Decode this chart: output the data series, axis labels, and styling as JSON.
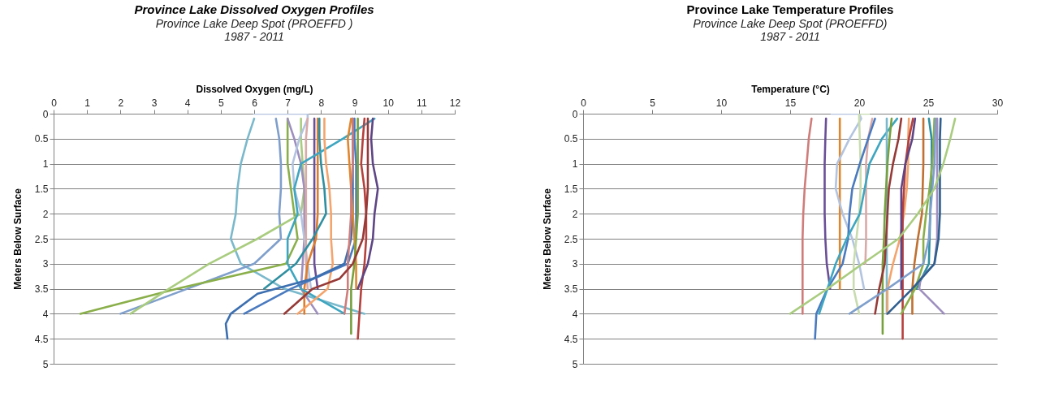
{
  "chart_data": [
    {
      "type": "line",
      "title": "Province Lake Dissolved Oxygen Profiles",
      "subtitle": "Province Lake Deep Spot (PROEFFD )\n1987 - 2011",
      "xlabel": "Dissolved Oxygen (mg/L)",
      "ylabel": "Meters Below Surface",
      "xlim": [
        0,
        12
      ],
      "xticks": [
        0,
        1,
        2,
        3,
        4,
        5,
        6,
        7,
        8,
        9,
        10,
        11,
        12
      ],
      "ylim": [
        5,
        0
      ],
      "yticks": [
        0,
        0.5,
        1,
        1.5,
        2,
        2.5,
        3,
        3.5,
        4,
        4.5,
        5
      ],
      "grid": "y",
      "legend": false,
      "marker": "none",
      "line_style": "solid",
      "series": [
        {
          "color": "#7ab9cc",
          "x": [
            6.0,
            5.8,
            5.6,
            5.5,
            5.45,
            5.3,
            5.6,
            6.9,
            9.3
          ],
          "values": [
            0.1,
            0.5,
            1,
            1.5,
            2,
            2.5,
            3,
            3.5,
            4
          ]
        },
        {
          "color": "#7f9fcc",
          "x": [
            6.65,
            6.75,
            6.8,
            6.8,
            6.75,
            6.8,
            6.0,
            4.0,
            2.0
          ],
          "values": [
            0.1,
            0.5,
            1,
            1.5,
            2,
            2.5,
            3,
            3.5,
            4
          ]
        },
        {
          "color": "#8aaf4a",
          "x": [
            7.0,
            7.0,
            7.0,
            7.1,
            7.2,
            7.3,
            6.95,
            3.7,
            0.8
          ],
          "values": [
            0.1,
            0.5,
            1,
            1.5,
            2,
            2.5,
            3,
            3.5,
            4
          ]
        },
        {
          "color": "#a9cc7f",
          "x": [
            7.4,
            7.4,
            7.45,
            7.5,
            7.4,
            6.1,
            4.65,
            3.45,
            2.3
          ],
          "values": [
            0.1,
            0.5,
            1,
            1.5,
            2,
            2.5,
            3,
            3.5,
            4
          ]
        },
        {
          "color": "#9e8fbf",
          "x": [
            7.0,
            7.2,
            7.4,
            7.5,
            7.5,
            7.5,
            7.45,
            7.4,
            7.9
          ],
          "values": [
            0.1,
            0.5,
            1,
            1.5,
            2,
            2.5,
            3,
            3.5,
            4
          ]
        },
        {
          "color": "#b3c4e0",
          "x": [
            6.0,
            7.6,
            7.6,
            7.35,
            7.15,
            7.2,
            7.4,
            7.5,
            7.6,
            7.7
          ],
          "values": [
            0,
            0,
            0.1,
            0.5,
            1,
            1.5,
            2,
            2.5,
            3,
            3.5
          ]
        },
        {
          "color": "#d9aaa8",
          "x": [
            7.6,
            7.55,
            7.55,
            7.55,
            7.55,
            7.55,
            7.55,
            7.6
          ],
          "values": [
            0.1,
            0.5,
            1,
            1.5,
            2,
            2.5,
            3,
            3.5
          ]
        },
        {
          "color": "#6b4f97",
          "x": [
            7.8,
            7.8,
            7.8,
            7.8,
            7.8,
            7.8,
            7.8,
            7.9
          ],
          "values": [
            0.1,
            0.5,
            1,
            1.5,
            2,
            2.5,
            3,
            3.5
          ]
        },
        {
          "color": "#dd7e2e",
          "x": [
            7.9,
            7.9,
            7.9,
            7.9,
            7.9,
            7.85,
            7.6,
            7.5,
            7.5
          ],
          "values": [
            0.1,
            0.5,
            1,
            1.5,
            2,
            2.5,
            3,
            3.5,
            4
          ]
        },
        {
          "color": "#2f8fa0",
          "x": [
            7.95,
            7.95,
            8.0,
            8.1,
            8.15,
            7.75,
            7.25,
            6.3
          ],
          "values": [
            0.1,
            0.5,
            1,
            1.5,
            2,
            2.5,
            3,
            3.5
          ]
        },
        {
          "color": "#3ea6c0",
          "x": [
            9.6,
            8.65,
            7.4,
            7.2,
            7.3,
            7.0,
            7.0,
            7.4,
            8.7
          ],
          "values": [
            0.1,
            0.5,
            1,
            1.5,
            2,
            2.5,
            3,
            3.5,
            4
          ]
        },
        {
          "color": "#f4a46c",
          "x": [
            8.1,
            8.1,
            8.15,
            8.25,
            8.3,
            8.3,
            8.35,
            8.2,
            7.3
          ],
          "values": [
            0.1,
            0.5,
            1,
            1.5,
            2,
            2.5,
            3,
            3.5,
            4
          ]
        },
        {
          "color": "#4a7abf",
          "x": [
            9.0,
            9.0,
            9.05,
            9.05,
            9.05,
            9.05,
            8.8,
            7.1,
            5.7
          ],
          "values": [
            0.1,
            0.5,
            1,
            1.5,
            2,
            2.5,
            3,
            3.5,
            4
          ]
        },
        {
          "color": "#3c6fb0",
          "x": [
            8.95,
            8.95,
            8.95,
            8.95,
            8.95,
            8.9,
            8.7,
            7.75,
            6.1,
            5.3,
            5.15,
            5.2
          ],
          "values": [
            0.1,
            0.5,
            1,
            1.5,
            2,
            2.5,
            3,
            3.3,
            3.6,
            4,
            4.2,
            4.5
          ]
        },
        {
          "color": "#e0872e",
          "x": [
            8.9,
            8.8,
            8.85,
            8.9,
            8.95,
            9.0,
            9.05,
            9.05
          ],
          "values": [
            0.1,
            0.5,
            1,
            1.5,
            2,
            2.5,
            3,
            3.5
          ]
        },
        {
          "color": "#cf7d7b",
          "x": [
            8.95,
            8.95,
            8.95,
            8.9,
            8.9,
            8.85,
            8.8,
            8.8,
            8.7
          ],
          "values": [
            0.1,
            0.5,
            1,
            1.5,
            2,
            2.5,
            3,
            3.5,
            4
          ]
        },
        {
          "color": "#77a03e",
          "x": [
            9.1,
            9.1,
            9.1,
            9.1,
            9.1,
            9.05,
            9.0,
            8.9,
            8.9,
            8.9
          ],
          "values": [
            0.1,
            0.5,
            1,
            1.5,
            2,
            2.5,
            3,
            3.5,
            4,
            4.4
          ]
        },
        {
          "color": "#b5403c",
          "x": [
            9.3,
            9.25,
            9.2,
            9.3,
            9.35,
            9.35,
            9.3,
            9.2,
            9.15,
            9.1
          ],
          "values": [
            0.1,
            0.5,
            1,
            1.5,
            2,
            2.5,
            3,
            3.5,
            4,
            4.5
          ]
        },
        {
          "color": "#963a37",
          "x": [
            9.4,
            9.4,
            9.4,
            9.4,
            9.35,
            9.25,
            8.95,
            8.55,
            7.75,
            6.9
          ],
          "values": [
            0.1,
            0.5,
            1,
            1.5,
            2,
            2.5,
            3,
            3.3,
            3.5,
            4
          ]
        },
        {
          "color": "#5e4585",
          "x": [
            9.55,
            9.5,
            9.55,
            9.7,
            9.6,
            9.55,
            9.4,
            9.1
          ],
          "values": [
            0.1,
            0.5,
            1,
            1.5,
            2,
            2.5,
            3,
            3.5
          ]
        }
      ]
    },
    {
      "type": "line",
      "title": "Province Lake Temperature Profiles",
      "subtitle": "Province Lake Deep Spot (PROEFFD)\n1987 - 2011",
      "xlabel": "Temperature (°C)",
      "ylabel": "Meters Below Surface",
      "xlim": [
        0,
        30
      ],
      "xticks": [
        0,
        5,
        10,
        15,
        20,
        25,
        30
      ],
      "ylim": [
        5,
        0
      ],
      "yticks": [
        0,
        0.5,
        1,
        1.5,
        2,
        2.5,
        3,
        3.5,
        4,
        4.5,
        5
      ],
      "grid": "y",
      "legend": false,
      "marker": "none",
      "line_style": "solid",
      "series": [
        {
          "color": "#cf7d7b",
          "x": [
            16.55,
            16.35,
            16.2,
            16.05,
            15.95,
            15.9,
            15.9,
            15.9,
            15.9
          ],
          "values": [
            0.1,
            0.5,
            1,
            1.5,
            2,
            2.5,
            3,
            3.5,
            4
          ]
        },
        {
          "color": "#6b4f97",
          "x": [
            17.6,
            17.55,
            17.5,
            17.5,
            17.5,
            17.55,
            17.65,
            17.9
          ],
          "values": [
            0.1,
            0.5,
            1,
            1.5,
            2,
            2.5,
            3,
            3.5
          ]
        },
        {
          "color": "#e0872e",
          "x": [
            18.6,
            18.6,
            18.6,
            18.6,
            18.6,
            18.6,
            18.6,
            18.6
          ],
          "values": [
            0.1,
            0.5,
            1,
            1.5,
            2,
            2.5,
            3,
            3.5
          ]
        },
        {
          "color": "#b3c4e0",
          "x": [
            18.0,
            20.0,
            20.15,
            19.3,
            18.4,
            18.3,
            18.8,
            19.5,
            20.0,
            20.35
          ],
          "values": [
            0,
            0,
            0.1,
            0.5,
            1,
            1.5,
            2,
            2.5,
            3,
            3.5
          ]
        },
        {
          "color": "#c8dcb0",
          "x": [
            20.7,
            20.0,
            20.0,
            20.1,
            20.1,
            20.0,
            19.8,
            19.6,
            19.6,
            20.0
          ],
          "values": [
            0,
            0,
            0.1,
            1,
            1.5,
            2,
            2.5,
            3,
            3.5,
            4
          ]
        },
        {
          "color": "#d9aaa8",
          "x": [
            20.95,
            20.65,
            20.5,
            20.5,
            20.5,
            20.5,
            20.45
          ],
          "values": [
            0.1,
            0.5,
            1,
            1.5,
            2,
            2.5,
            3
          ]
        },
        {
          "color": "#4a7abf",
          "x": [
            21.15,
            20.65,
            20.05,
            19.5,
            19.3,
            19.2,
            18.8,
            17.7,
            16.9,
            16.8
          ],
          "values": [
            0.1,
            0.5,
            1,
            1.5,
            2,
            2.5,
            3,
            3.5,
            4,
            4.5
          ]
        },
        {
          "color": "#3ea6c0",
          "x": [
            22.75,
            21.65,
            20.75,
            20.4,
            20.05,
            19.1,
            18.3,
            17.7,
            17.1
          ],
          "values": [
            0.1,
            0.5,
            1,
            1.5,
            2,
            2.5,
            3,
            3.5,
            4
          ]
        },
        {
          "color": "#7ab9cc",
          "x": [
            22.0,
            22.0,
            22.0,
            22.0,
            22.0,
            22.0,
            22.0,
            22.0,
            22.0
          ],
          "values": [
            0.1,
            0.5,
            1,
            1.5,
            2,
            2.5,
            3,
            3.5,
            4
          ]
        },
        {
          "color": "#77a03e",
          "x": [
            22.35,
            22.2,
            22.05,
            21.95,
            21.85,
            21.8,
            21.7,
            21.7,
            21.7,
            21.7
          ],
          "values": [
            0.1,
            0.5,
            1,
            1.5,
            2,
            2.5,
            3,
            3.5,
            4,
            4.4
          ]
        },
        {
          "color": "#963a37",
          "x": [
            23.05,
            22.85,
            22.45,
            22.15,
            22.05,
            21.95,
            21.85,
            21.45,
            21.15
          ],
          "values": [
            0.1,
            0.5,
            1,
            1.5,
            2,
            2.5,
            3,
            3.5,
            4
          ]
        },
        {
          "color": "#f4a46c",
          "x": [
            23.6,
            23.55,
            23.55,
            23.45,
            23.25,
            22.95,
            22.45,
            22.05,
            22.05
          ],
          "values": [
            0.1,
            0.5,
            1,
            1.5,
            2,
            2.5,
            3,
            3.5,
            4
          ]
        },
        {
          "color": "#b5403c",
          "x": [
            23.9,
            23.6,
            23.35,
            23.25,
            23.15,
            23.15,
            23.15,
            23.15,
            23.15,
            23.15
          ],
          "values": [
            0.1,
            0.5,
            1,
            1.5,
            2,
            2.5,
            3,
            3.5,
            4,
            4.5
          ]
        },
        {
          "color": "#5e4585",
          "x": [
            24.05,
            23.85,
            23.35,
            23.05,
            23.05,
            23.05,
            23.05,
            23.05
          ],
          "values": [
            0.1,
            0.5,
            1,
            1.5,
            2,
            2.5,
            3,
            3.5
          ]
        },
        {
          "color": "#c07030",
          "x": [
            24.65,
            24.65,
            24.65,
            24.6,
            24.55,
            24.25,
            24.0,
            23.85,
            23.85
          ],
          "values": [
            0.1,
            0.5,
            1,
            1.5,
            2,
            2.5,
            3,
            3.5,
            4
          ]
        },
        {
          "color": "#2f8fa0",
          "x": [
            25.05,
            25.25,
            25.25,
            25.2,
            25.15,
            25.1,
            25.05,
            24.15
          ],
          "values": [
            0.1,
            0.5,
            1,
            1.5,
            2,
            2.5,
            3,
            3.5
          ]
        },
        {
          "color": "#8aaf4a",
          "x": [
            25.45,
            25.4,
            25.3,
            25.1,
            24.85,
            24.65,
            24.65,
            24.05,
            23.05
          ],
          "values": [
            0.1,
            0.5,
            1,
            1.5,
            2,
            2.5,
            3,
            3.5,
            4
          ]
        },
        {
          "color": "#7f9fcc",
          "x": [
            25.55,
            25.5,
            25.45,
            25.3,
            25.15,
            25.05,
            24.65,
            22.05,
            19.3
          ],
          "values": [
            0.1,
            0.5,
            1,
            1.5,
            2,
            2.5,
            3,
            3.5,
            4
          ]
        },
        {
          "color": "#9e8fbf",
          "x": [
            25.65,
            25.65,
            25.65,
            25.65,
            25.65,
            25.65,
            25.45,
            24.45,
            24.35,
            26.15
          ],
          "values": [
            0.1,
            0.5,
            1,
            1.5,
            2,
            2.5,
            3,
            3.3,
            3.5,
            4
          ]
        },
        {
          "color": "#2f5f8f",
          "x": [
            25.9,
            25.85,
            25.85,
            25.85,
            25.85,
            25.75,
            25.45,
            23.85,
            22.05
          ],
          "values": [
            0.1,
            0.5,
            1,
            1.5,
            2,
            2.5,
            3,
            3.5,
            4
          ]
        },
        {
          "color": "#a9cc7f",
          "x": [
            26.95,
            26.6,
            26.1,
            25.45,
            24.25,
            22.85,
            20.25,
            17.7,
            15.0
          ],
          "values": [
            0.1,
            0.5,
            1,
            1.5,
            2,
            2.5,
            3,
            3.5,
            4
          ]
        }
      ]
    }
  ]
}
